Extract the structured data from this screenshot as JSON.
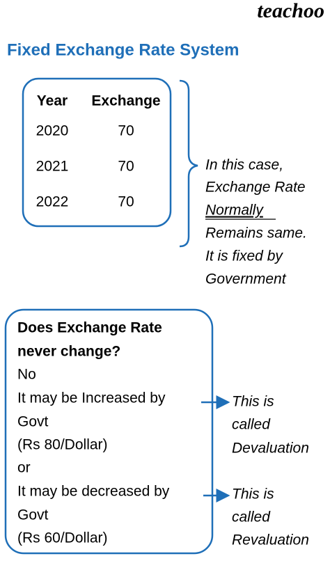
{
  "header": {
    "logo": "teachoo",
    "title": "Fixed Exchange Rate System"
  },
  "table": {
    "columns": [
      "Year",
      "Exchange"
    ],
    "rows": [
      [
        2020,
        70
      ],
      [
        2021,
        70
      ],
      [
        2022,
        70
      ]
    ]
  },
  "note": {
    "lines": [
      "In this case,",
      "Exchange Rate",
      "Normally",
      "Remains same.",
      "It is fixed by",
      "Government"
    ]
  },
  "box": {
    "question": [
      "Does Exchange Rate",
      "never change?"
    ],
    "lines": [
      "No",
      "It may be Increased by",
      "Govt",
      "(Rs 80/Dollar)",
      "or",
      "It may be decreased by",
      "Govt",
      "(Rs 60/Dollar)"
    ]
  },
  "annotations": [
    [
      "This is",
      "called",
      "Devaluation"
    ],
    [
      "This is",
      "called",
      "Revaluation"
    ]
  ]
}
